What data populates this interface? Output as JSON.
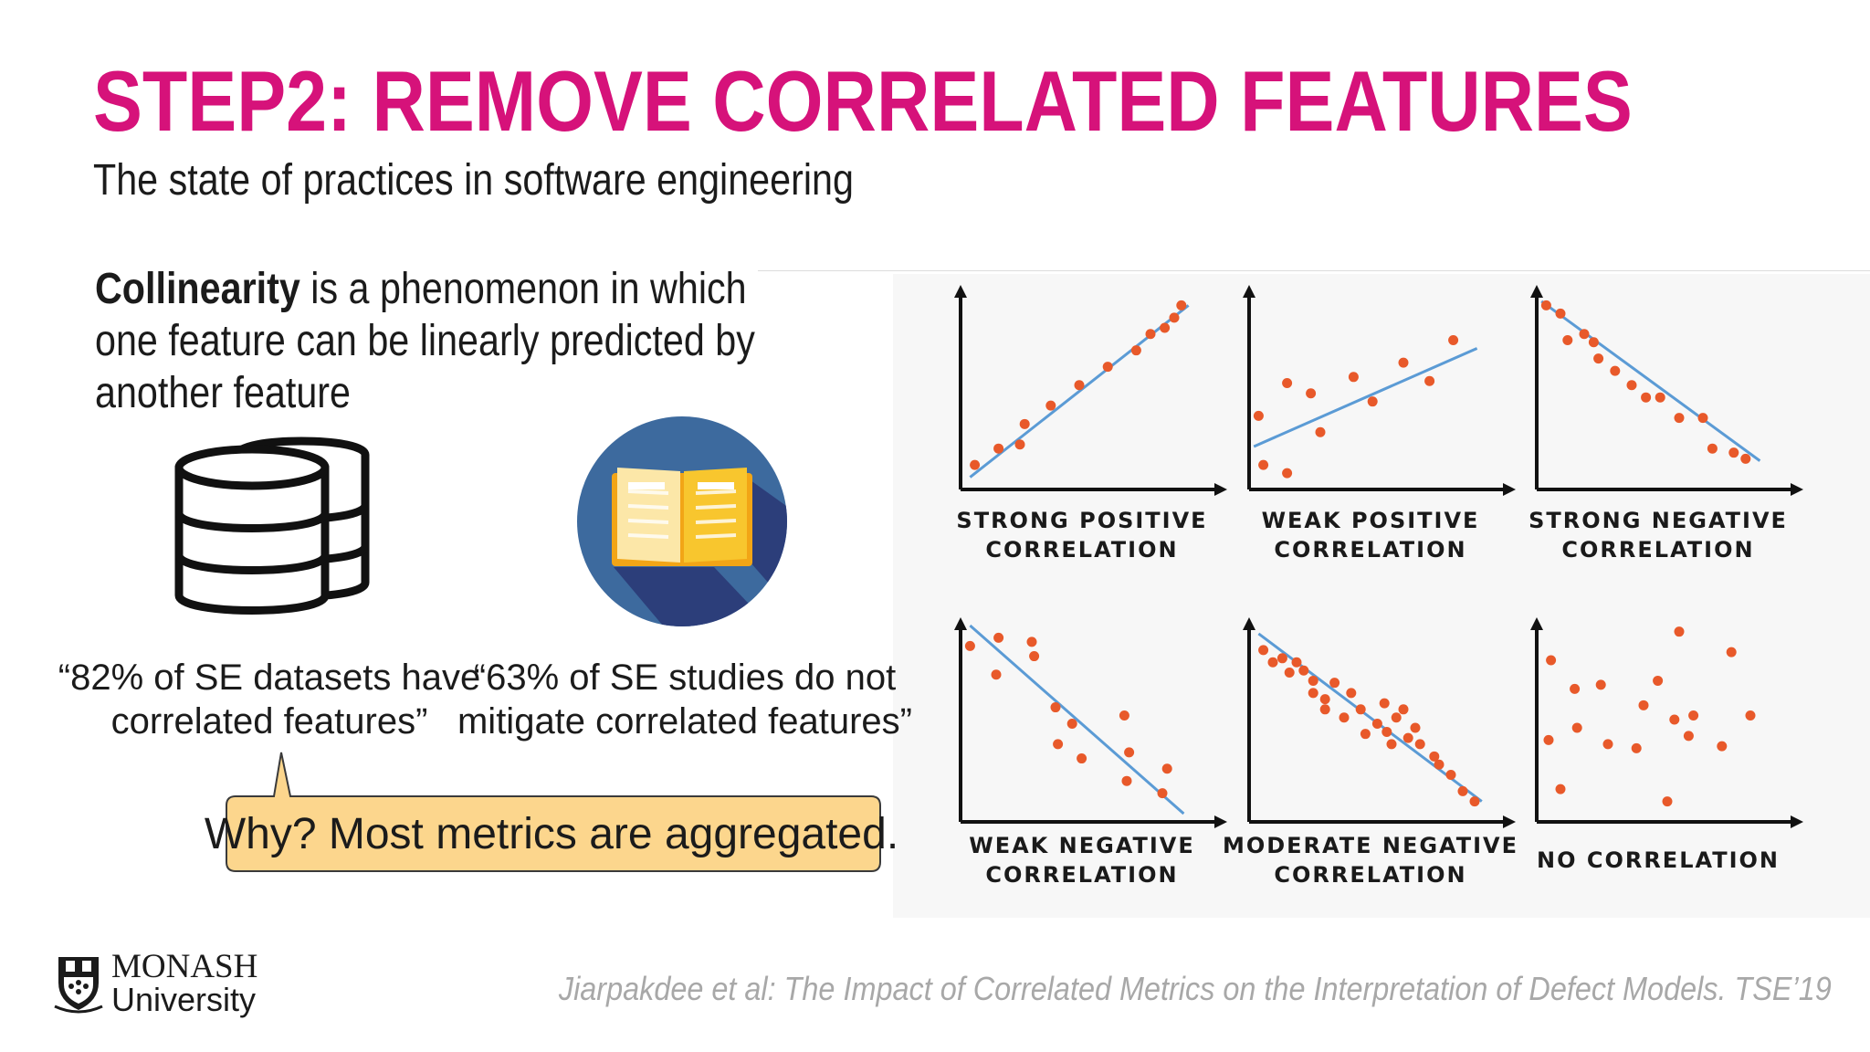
{
  "slide": {
    "title": "STEP2: REMOVE CORRELATED FEATURES",
    "subtitle": "The state of practices in software engineering",
    "definition": {
      "term": "Collinearity",
      "text": " is a phenomenon in which one feature can be linearly predicted by another feature"
    },
    "quotes": [
      {
        "text": "“82% of SE datasets have correlated features”",
        "icon": "database-icon"
      },
      {
        "text": "“63% of SE studies do not mitigate correlated features”",
        "icon": "book-icon"
      }
    ],
    "callout": "Why? Most metrics are aggregated.",
    "citation": "Jiarpakdee et al: The Impact of Correlated Metrics on the Interpretation of Defect Models. TSE’19",
    "logo": {
      "name": "MONASH",
      "sub": "University",
      "icon": "monash-crest-icon"
    },
    "colors": {
      "title": "#D6127A",
      "points": "#E8592A",
      "trend": "#5B9BD5",
      "callout_fill": "#FCD68D",
      "citation": "#A8A8A8"
    }
  },
  "chart_data": [
    {
      "type": "scatter",
      "label_lines": [
        "STRONG POSITIVE",
        "CORRELATION"
      ],
      "points": [
        [
          0.06,
          0.12
        ],
        [
          0.16,
          0.2
        ],
        [
          0.25,
          0.22
        ],
        [
          0.27,
          0.32
        ],
        [
          0.38,
          0.41
        ],
        [
          0.5,
          0.51
        ],
        [
          0.62,
          0.6
        ],
        [
          0.74,
          0.68
        ],
        [
          0.8,
          0.76
        ],
        [
          0.86,
          0.79
        ],
        [
          0.9,
          0.84
        ],
        [
          0.93,
          0.9
        ]
      ],
      "trend": [
        [
          0.04,
          0.06
        ],
        [
          0.96,
          0.9
        ]
      ]
    },
    {
      "type": "scatter",
      "label_lines": [
        "WEAK POSITIVE",
        "CORRELATION"
      ],
      "points": [
        [
          0.04,
          0.36
        ],
        [
          0.06,
          0.12
        ],
        [
          0.16,
          0.08
        ],
        [
          0.16,
          0.52
        ],
        [
          0.26,
          0.47
        ],
        [
          0.3,
          0.28
        ],
        [
          0.44,
          0.55
        ],
        [
          0.52,
          0.43
        ],
        [
          0.65,
          0.62
        ],
        [
          0.76,
          0.53
        ],
        [
          0.86,
          0.73
        ]
      ],
      "trend": [
        [
          0.02,
          0.21
        ],
        [
          0.96,
          0.69
        ]
      ]
    },
    {
      "type": "scatter",
      "label_lines": [
        "STRONG NEGATIVE",
        "CORRELATION"
      ],
      "points": [
        [
          0.04,
          0.9
        ],
        [
          0.1,
          0.86
        ],
        [
          0.13,
          0.73
        ],
        [
          0.2,
          0.76
        ],
        [
          0.24,
          0.72
        ],
        [
          0.26,
          0.64
        ],
        [
          0.33,
          0.58
        ],
        [
          0.4,
          0.51
        ],
        [
          0.46,
          0.45
        ],
        [
          0.52,
          0.45
        ],
        [
          0.6,
          0.35
        ],
        [
          0.7,
          0.35
        ],
        [
          0.74,
          0.2
        ],
        [
          0.83,
          0.18
        ],
        [
          0.88,
          0.15
        ]
      ],
      "trend": [
        [
          0.02,
          0.92
        ],
        [
          0.94,
          0.14
        ]
      ]
    },
    {
      "type": "scatter",
      "label_lines": [
        "WEAK NEGATIVE",
        "CORRELATION"
      ],
      "points": [
        [
          0.04,
          0.86
        ],
        [
          0.16,
          0.9
        ],
        [
          0.15,
          0.72
        ],
        [
          0.3,
          0.88
        ],
        [
          0.31,
          0.81
        ],
        [
          0.4,
          0.56
        ],
        [
          0.47,
          0.48
        ],
        [
          0.41,
          0.38
        ],
        [
          0.51,
          0.31
        ],
        [
          0.69,
          0.52
        ],
        [
          0.71,
          0.34
        ],
        [
          0.7,
          0.2
        ],
        [
          0.87,
          0.26
        ],
        [
          0.85,
          0.14
        ]
      ],
      "trend": [
        [
          0.04,
          0.96
        ],
        [
          0.94,
          0.04
        ]
      ]
    },
    {
      "type": "scatter",
      "label_lines": [
        "MODERATE NEGATIVE",
        "CORRELATION"
      ],
      "points": [
        [
          0.06,
          0.84
        ],
        [
          0.1,
          0.78
        ],
        [
          0.14,
          0.8
        ],
        [
          0.17,
          0.73
        ],
        [
          0.2,
          0.78
        ],
        [
          0.23,
          0.74
        ],
        [
          0.27,
          0.69
        ],
        [
          0.27,
          0.63
        ],
        [
          0.32,
          0.6
        ],
        [
          0.32,
          0.55
        ],
        [
          0.36,
          0.68
        ],
        [
          0.4,
          0.51
        ],
        [
          0.43,
          0.63
        ],
        [
          0.47,
          0.55
        ],
        [
          0.49,
          0.43
        ],
        [
          0.54,
          0.48
        ],
        [
          0.57,
          0.58
        ],
        [
          0.58,
          0.44
        ],
        [
          0.6,
          0.38
        ],
        [
          0.62,
          0.51
        ],
        [
          0.65,
          0.55
        ],
        [
          0.67,
          0.41
        ],
        [
          0.7,
          0.46
        ],
        [
          0.72,
          0.38
        ],
        [
          0.78,
          0.32
        ],
        [
          0.8,
          0.28
        ],
        [
          0.85,
          0.23
        ],
        [
          0.9,
          0.15
        ],
        [
          0.95,
          0.1
        ]
      ],
      "trend": [
        [
          0.04,
          0.92
        ],
        [
          0.98,
          0.1
        ]
      ]
    },
    {
      "type": "scatter",
      "label_lines": [
        "NO CORRELATION"
      ],
      "points": [
        [
          0.06,
          0.79
        ],
        [
          0.16,
          0.65
        ],
        [
          0.27,
          0.67
        ],
        [
          0.17,
          0.46
        ],
        [
          0.05,
          0.4
        ],
        [
          0.3,
          0.38
        ],
        [
          0.42,
          0.36
        ],
        [
          0.45,
          0.57
        ],
        [
          0.51,
          0.69
        ],
        [
          0.1,
          0.16
        ],
        [
          0.6,
          0.93
        ],
        [
          0.58,
          0.5
        ],
        [
          0.64,
          0.42
        ],
        [
          0.66,
          0.52
        ],
        [
          0.78,
          0.37
        ],
        [
          0.82,
          0.83
        ],
        [
          0.9,
          0.52
        ],
        [
          0.55,
          0.1
        ]
      ],
      "trend": null
    }
  ]
}
